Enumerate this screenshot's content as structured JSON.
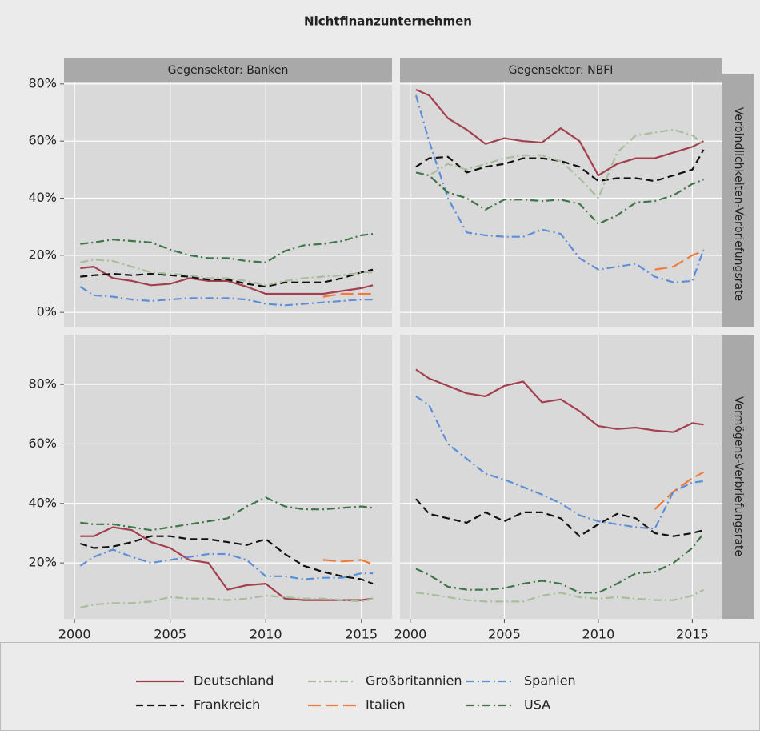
{
  "title": "Nichtfinanzunternehmen",
  "columns": [
    "Gegensektor: Banken",
    "Gegensektor: NBFI"
  ],
  "rows": [
    "Verbindlichkeiten-Verbriefungsrate",
    "Vermögens-Verbriefungsrate"
  ],
  "chart_data": [
    {
      "type": "line",
      "grid": true,
      "x": [
        2000.3,
        2001,
        2002,
        2003,
        2004,
        2005,
        2006,
        2007,
        2008,
        2009,
        2010,
        2011,
        2012,
        2013,
        2014,
        2015,
        2015.6
      ],
      "xlim": [
        1999.45,
        2016.6
      ],
      "xticks": [
        2000,
        2005,
        2010,
        2015
      ],
      "ylim": [
        -5,
        80.8
      ],
      "yticks": [
        {
          "value": 0,
          "label": "0%"
        },
        {
          "value": 20,
          "label": "20%"
        },
        {
          "value": 40,
          "label": "40%"
        },
        {
          "value": 60,
          "label": "60%"
        },
        {
          "value": 80,
          "label": "80%"
        }
      ],
      "series": [
        {
          "name": "Deutschland",
          "color": "#a3404f",
          "dash": "solid",
          "values": [
            15.5,
            16,
            12,
            11,
            9.5,
            10,
            12,
            11,
            11,
            9,
            6.5,
            6.5,
            6.5,
            6.5,
            7.5,
            8.5,
            9.5
          ]
        },
        {
          "name": "Frankreich",
          "color": "#111111",
          "dash": "dashed",
          "values": [
            12.5,
            13,
            13.5,
            13,
            13.5,
            13,
            12.5,
            11.5,
            11.5,
            10,
            9,
            10.5,
            10.5,
            10.5,
            12,
            14,
            15
          ]
        },
        {
          "name": "Großbritannien",
          "color": "#a7bd9c",
          "dash": "dashdot",
          "values": [
            17.5,
            18.5,
            18,
            16,
            14,
            13.5,
            13,
            12,
            12,
            11,
            9.5,
            11,
            12,
            12.5,
            13,
            14,
            14
          ]
        },
        {
          "name": "Italien",
          "color": "#f07a3a",
          "dash": "longdash",
          "values": [
            null,
            null,
            null,
            null,
            null,
            null,
            null,
            null,
            null,
            null,
            null,
            null,
            null,
            5.5,
            6.5,
            6.5,
            6.5
          ]
        },
        {
          "name": "Spanien",
          "color": "#5d8fd8",
          "dash": "dashdot",
          "values": [
            9,
            6,
            5.5,
            4.5,
            4,
            4.5,
            5,
            5,
            5,
            4.5,
            3,
            2.5,
            3,
            3.5,
            4,
            4.5,
            4.5
          ]
        },
        {
          "name": "USA",
          "color": "#3e7549",
          "dash": "dashdot",
          "values": [
            24,
            24.5,
            25.5,
            25,
            24.5,
            22,
            20,
            19,
            19,
            18,
            17.5,
            21.5,
            23.5,
            24,
            25,
            27,
            27.5
          ]
        }
      ]
    },
    {
      "type": "line",
      "grid": true,
      "x": [
        2000.3,
        2001,
        2002,
        2003,
        2004,
        2005,
        2006,
        2007,
        2008,
        2009,
        2010,
        2011,
        2012,
        2013,
        2014,
        2015,
        2015.6
      ],
      "xlim": [
        1999.45,
        2016.6
      ],
      "xticks": [
        2000,
        2005,
        2010,
        2015
      ],
      "ylim": [
        -5,
        80.8
      ],
      "yticks": [
        0,
        20,
        40,
        60,
        80
      ],
      "series": [
        {
          "name": "Deutschland",
          "color": "#a3404f",
          "dash": "solid",
          "values": [
            78,
            76,
            68,
            64,
            59,
            61,
            60,
            59.5,
            64.5,
            60,
            48,
            52,
            54,
            54,
            56,
            58,
            60
          ]
        },
        {
          "name": "Frankreich",
          "color": "#111111",
          "dash": "dashed",
          "values": [
            51,
            54,
            54.5,
            49,
            51,
            52,
            54,
            54,
            53,
            51,
            46,
            47,
            47,
            46,
            48,
            50,
            57
          ]
        },
        {
          "name": "Großbritannien",
          "color": "#a7bd9c",
          "dash": "dashdot",
          "values": [
            49,
            48,
            52,
            50,
            52,
            54,
            55,
            55,
            53,
            47,
            40,
            56,
            62,
            63,
            64,
            62,
            59
          ]
        },
        {
          "name": "Italien",
          "color": "#f07a3a",
          "dash": "longdash",
          "values": [
            null,
            null,
            null,
            null,
            null,
            null,
            null,
            null,
            null,
            null,
            null,
            null,
            null,
            15,
            16,
            20,
            21.5
          ]
        },
        {
          "name": "Spanien",
          "color": "#5d8fd8",
          "dash": "dashdot",
          "values": [
            76,
            60,
            40,
            28,
            27,
            26.5,
            26.5,
            29,
            27.5,
            19,
            15,
            16,
            17,
            12.5,
            10.5,
            11,
            22
          ]
        },
        {
          "name": "USA",
          "color": "#3e7549",
          "dash": "dashdot",
          "values": [
            49,
            48,
            42,
            40,
            36,
            39.5,
            39.5,
            39,
            39.5,
            38,
            31,
            34,
            38.5,
            39,
            41,
            45,
            46.5
          ]
        }
      ]
    },
    {
      "type": "line",
      "grid": true,
      "x": [
        2000.3,
        2001,
        2002,
        2003,
        2004,
        2005,
        2006,
        2007,
        2008,
        2009,
        2010,
        2011,
        2012,
        2013,
        2014,
        2015,
        2015.6
      ],
      "xlim": [
        1999.45,
        2016.6
      ],
      "xticks": [
        2000,
        2005,
        2010,
        2015
      ],
      "ylim": [
        1.2,
        96.7
      ],
      "yticks": [
        {
          "value": 20,
          "label": "20%"
        },
        {
          "value": 40,
          "label": "40%"
        },
        {
          "value": 60,
          "label": "60%"
        },
        {
          "value": 80,
          "label": "80%"
        }
      ],
      "series": [
        {
          "name": "Deutschland",
          "color": "#a3404f",
          "dash": "solid",
          "values": [
            29,
            29,
            32,
            31,
            27,
            25,
            21,
            20,
            11,
            12.5,
            13,
            8,
            7.5,
            7.5,
            7.5,
            7.5,
            8
          ]
        },
        {
          "name": "Frankreich",
          "color": "#111111",
          "dash": "dashed",
          "values": [
            26.5,
            25,
            25.5,
            27,
            29,
            29,
            28,
            28,
            27,
            26,
            28,
            23,
            19,
            17,
            15.5,
            14.5,
            13
          ]
        },
        {
          "name": "Großbritannien",
          "color": "#a7bd9c",
          "dash": "dashdot",
          "values": [
            5,
            6,
            6.5,
            6.5,
            7,
            8.5,
            8,
            8,
            7.5,
            8,
            9,
            8.5,
            8,
            8,
            7.5,
            7,
            8
          ]
        },
        {
          "name": "Italien",
          "color": "#f07a3a",
          "dash": "longdash",
          "values": [
            null,
            null,
            null,
            null,
            null,
            null,
            null,
            null,
            null,
            null,
            null,
            null,
            null,
            21,
            20.5,
            21,
            19.5
          ]
        },
        {
          "name": "Spanien",
          "color": "#5d8fd8",
          "dash": "dashdot",
          "values": [
            19,
            22,
            24.5,
            22,
            20,
            21,
            22,
            23,
            23,
            21,
            15.5,
            15.5,
            14.5,
            15,
            15,
            16.5,
            16.5
          ]
        },
        {
          "name": "USA",
          "color": "#3e7549",
          "dash": "dashdot",
          "values": [
            33.5,
            33,
            33,
            32,
            31,
            32,
            33,
            34,
            35,
            39,
            42,
            39,
            38,
            38,
            38.5,
            39,
            38.5
          ]
        }
      ]
    },
    {
      "type": "line",
      "grid": true,
      "x": [
        2000.3,
        2001,
        2002,
        2003,
        2004,
        2005,
        2006,
        2007,
        2008,
        2009,
        2010,
        2011,
        2012,
        2013,
        2014,
        2015,
        2015.6
      ],
      "xlim": [
        1999.45,
        2016.6
      ],
      "xticks": [
        2000,
        2005,
        2010,
        2015
      ],
      "ylim": [
        1.2,
        96.7
      ],
      "yticks": [
        20,
        40,
        60,
        80
      ],
      "series": [
        {
          "name": "Deutschland",
          "color": "#a3404f",
          "dash": "solid",
          "values": [
            85,
            82,
            79.5,
            77,
            76,
            79.5,
            81,
            74,
            75,
            71,
            66,
            65,
            65.5,
            64.5,
            64,
            67,
            66.5
          ]
        },
        {
          "name": "Frankreich",
          "color": "#111111",
          "dash": "dashed",
          "values": [
            41.5,
            36.5,
            35,
            33.5,
            37,
            34,
            37,
            37,
            35,
            29,
            33,
            36.5,
            35,
            30,
            29,
            30,
            31
          ]
        },
        {
          "name": "Großbritannien",
          "color": "#a7bd9c",
          "dash": "dashdot",
          "values": [
            10,
            9.5,
            8.5,
            7.5,
            7,
            7,
            7,
            9,
            10,
            8.5,
            8,
            8.5,
            8,
            7.5,
            7.5,
            9,
            11
          ]
        },
        {
          "name": "Italien",
          "color": "#f07a3a",
          "dash": "longdash",
          "values": [
            null,
            null,
            null,
            null,
            null,
            null,
            null,
            null,
            null,
            null,
            null,
            null,
            null,
            38,
            44,
            48.5,
            50.5
          ]
        },
        {
          "name": "Spanien",
          "color": "#5d8fd8",
          "dash": "dashdot",
          "values": [
            76,
            73,
            60,
            55,
            50,
            48,
            45.5,
            43,
            40,
            36,
            34,
            33,
            32,
            31.5,
            44,
            47,
            47.5
          ]
        },
        {
          "name": "USA",
          "color": "#3e7549",
          "dash": "dashdot",
          "values": [
            18,
            16,
            12,
            11,
            11,
            11.5,
            13,
            14,
            13,
            10,
            10,
            13,
            16.5,
            17,
            20,
            25,
            30
          ]
        }
      ]
    }
  ]
}
